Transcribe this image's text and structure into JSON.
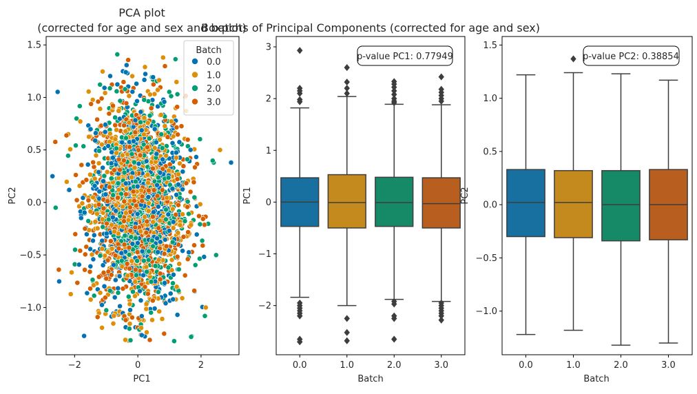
{
  "palette": {
    "0.0": "#0173b2",
    "1.0": "#de8f05",
    "2.0": "#029e73",
    "3.0": "#d55e00"
  },
  "chart_data": [
    {
      "type": "scatter",
      "title_line1": "PCA plot",
      "title_line2": "(corrected for age and sex and batch)",
      "xlabel": "PC1",
      "ylabel": "PC2",
      "xlim": [
        -2.9,
        3.2
      ],
      "ylim": [
        -1.45,
        1.58
      ],
      "xticks": [
        -2,
        0,
        2
      ],
      "xtick_labels": [
        "−2",
        "0",
        "2"
      ],
      "yticks": [
        -1.0,
        -0.5,
        0.0,
        0.5,
        1.0,
        1.5
      ],
      "ytick_labels": [
        "−1.0",
        "−0.5",
        "0.0",
        "0.5",
        "1.0",
        "1.5"
      ],
      "legend": {
        "title": "Batch",
        "entries": [
          "0.0",
          "1.0",
          "2.0",
          "3.0"
        ],
        "placement": "top-right"
      },
      "series": [
        {
          "name": "0.0",
          "center": [
            0.0,
            0.0
          ],
          "spread": [
            0.75,
            0.5
          ]
        },
        {
          "name": "1.0",
          "center": [
            0.0,
            0.0
          ],
          "spread": [
            0.75,
            0.5
          ]
        },
        {
          "name": "2.0",
          "center": [
            0.0,
            0.0
          ],
          "spread": [
            0.75,
            0.5
          ]
        },
        {
          "name": "3.0",
          "center": [
            0.0,
            0.0
          ],
          "spread": [
            0.75,
            0.5
          ]
        }
      ],
      "outlier_points": [
        {
          "x": 2.95,
          "y": 0.38,
          "batch": "0.0"
        },
        {
          "x": 2.6,
          "y": 0.5,
          "batch": "1.0"
        },
        {
          "x": -2.7,
          "y": 0.25,
          "batch": "0.0"
        },
        {
          "x": -0.65,
          "y": 1.41,
          "batch": "2.0"
        },
        {
          "x": 0.8,
          "y": 1.38,
          "batch": "1.0"
        },
        {
          "x": 1.15,
          "y": -1.32,
          "batch": "2.0"
        },
        {
          "x": 0.1,
          "y": -1.26,
          "batch": "3.0"
        },
        {
          "x": 2.15,
          "y": -1.0,
          "batch": "1.0"
        },
        {
          "x": -2.5,
          "y": -0.64,
          "batch": "3.0"
        },
        {
          "x": -2.6,
          "y": -0.05,
          "batch": "2.0"
        },
        {
          "x": 2.4,
          "y": 0.38,
          "batch": "2.0"
        },
        {
          "x": -2.2,
          "y": 0.65,
          "batch": "1.0"
        }
      ]
    },
    {
      "type": "box",
      "title": "Boxplots of Principal Components (corrected for age and sex)",
      "xlabel": "Batch",
      "ylabel": "PC1",
      "categories": [
        "0.0",
        "1.0",
        "2.0",
        "3.0"
      ],
      "ylim": [
        -2.95,
        3.2
      ],
      "yticks": [
        -2,
        -1,
        0,
        1,
        2,
        3
      ],
      "ytick_labels": [
        "−2",
        "−1",
        "0",
        "1",
        "2",
        "3"
      ],
      "annotation": "p-value PC1: 0.77949",
      "boxes": [
        {
          "q1": -0.47,
          "median": 0.0,
          "q3": 0.47,
          "whislo": -1.84,
          "whishi": 1.82,
          "fliers": [
            2.93,
            2.2,
            2.15,
            2.1,
            1.98,
            1.94,
            -1.95,
            -2.0,
            -2.05,
            -2.1,
            -2.15,
            -2.2,
            -2.65,
            -2.7
          ]
        },
        {
          "q1": -0.5,
          "median": -0.01,
          "q3": 0.53,
          "whislo": -2.0,
          "whishi": 2.04,
          "fliers": [
            2.6,
            2.32,
            2.2,
            2.1,
            -2.25,
            -2.52,
            -2.68
          ]
        },
        {
          "q1": -0.47,
          "median": -0.01,
          "q3": 0.48,
          "whislo": -1.88,
          "whishi": 1.89,
          "fliers": [
            2.33,
            2.28,
            2.22,
            2.15,
            2.08,
            2.0,
            1.95,
            1.92,
            -1.92,
            -1.97,
            -2.2,
            -2.25,
            -2.65
          ]
        },
        {
          "q1": -0.5,
          "median": -0.03,
          "q3": 0.47,
          "whislo": -1.92,
          "whishi": 1.88,
          "fliers": [
            2.42,
            2.18,
            2.12,
            2.06,
            2.0,
            1.95,
            -1.95,
            -2.0,
            -2.05,
            -2.1,
            -2.15,
            -2.2,
            -2.28
          ]
        }
      ]
    },
    {
      "type": "box",
      "xlabel": "Batch",
      "ylabel": "PC2",
      "categories": [
        "0.0",
        "1.0",
        "2.0",
        "3.0"
      ],
      "ylim": [
        -1.41,
        1.58
      ],
      "yticks": [
        -1.0,
        -0.5,
        0.0,
        0.5,
        1.0,
        1.5
      ],
      "ytick_labels": [
        "−1.0",
        "−0.5",
        "0.0",
        "0.5",
        "1.0",
        "1.5"
      ],
      "annotation": "p-value PC2: 0.38854",
      "boxes": [
        {
          "q1": -0.3,
          "median": 0.02,
          "q3": 0.33,
          "whislo": -1.22,
          "whishi": 1.22,
          "fliers": []
        },
        {
          "q1": -0.31,
          "median": 0.02,
          "q3": 0.32,
          "whislo": -1.18,
          "whishi": 1.24,
          "fliers": [
            1.37
          ]
        },
        {
          "q1": -0.34,
          "median": 0.0,
          "q3": 0.32,
          "whislo": -1.32,
          "whishi": 1.23,
          "fliers": []
        },
        {
          "q1": -0.33,
          "median": 0.0,
          "q3": 0.33,
          "whislo": -1.3,
          "whishi": 1.17,
          "fliers": []
        }
      ]
    }
  ]
}
